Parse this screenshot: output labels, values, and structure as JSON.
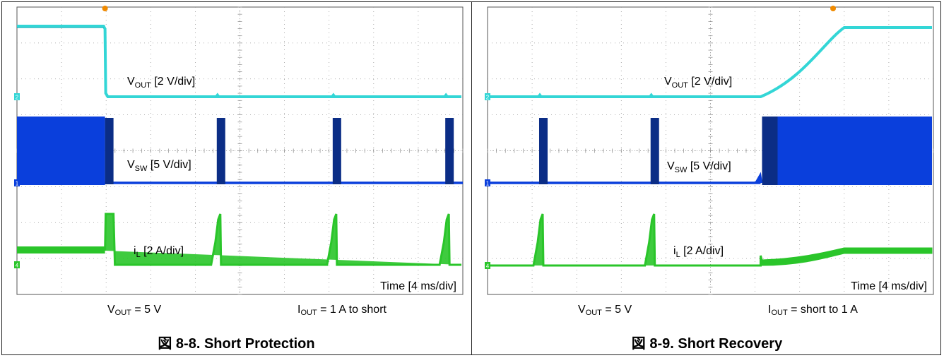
{
  "colors": {
    "vout": "#33d6d6",
    "vout_dark": "#00a9b4",
    "vsw": "#0a3fdc",
    "vsw_dark": "#0b2d86",
    "il": "#2ac52a",
    "il_dark": "#199a19",
    "grid": "#9a9a9a",
    "marker_trigger": "#f08a00"
  },
  "chart_data": [
    {
      "type": "line",
      "title": "図 8-8. Short Protection",
      "time_label": "Time [4 ms/div]",
      "x_unit": "ms",
      "x_per_div": 4,
      "divisions_x": 10,
      "divisions_y": 8,
      "channels": [
        {
          "id": "vout",
          "label_main": "V",
          "label_sub": "OUT",
          "label_rest": " [2 V/div]",
          "marker": "2",
          "marker_icon": "channel-2-marker-icon"
        },
        {
          "id": "vsw",
          "label_main": "V",
          "label_sub": "SW",
          "label_rest": " [5 V/div]",
          "marker": "1",
          "marker_icon": "channel-1-marker-icon"
        },
        {
          "id": "il",
          "label_main": "i",
          "label_sub": "L",
          "label_rest": " [2 A/div]",
          "marker": "4",
          "marker_icon": "channel-4-marker-icon"
        }
      ],
      "events": {
        "short_applied_ms": 7.9,
        "hiccup_pulses_ms": [
          7.9,
          17.8,
          28.2,
          38.3
        ],
        "vout_initial_V": 5,
        "vout_shorted_V": 0,
        "il_steady_A": 1,
        "il_peak_A": 3.2,
        "il_shorted_A": 0
      },
      "conditions": [
        {
          "main": "V",
          "sub": "OUT",
          "rest": " = 5 V"
        },
        {
          "main": "I",
          "sub": "OUT",
          "rest": " = 1 A to short"
        }
      ]
    },
    {
      "type": "line",
      "title": "図 8-9. Short Recovery",
      "time_label": "Time [4 ms/div]",
      "x_unit": "ms",
      "x_per_div": 4,
      "divisions_x": 10,
      "divisions_y": 8,
      "channels": [
        {
          "id": "vout",
          "label_main": "V",
          "label_sub": "OUT",
          "label_rest": " [2 V/div]",
          "marker": "2",
          "marker_icon": "channel-2-marker-icon"
        },
        {
          "id": "vsw",
          "label_main": "V",
          "label_sub": "SW",
          "label_rest": " [5 V/div]",
          "marker": "1",
          "marker_icon": "channel-1-marker-icon"
        },
        {
          "id": "il",
          "label_main": "i",
          "label_sub": "L",
          "label_rest": " [2 A/div]",
          "marker": "4",
          "marker_icon": "channel-4-marker-icon"
        }
      ],
      "events": {
        "hiccup_pulses_ms": [
          4.5,
          14.5
        ],
        "short_removed_ms": 24.5,
        "soft_start_end_ms": 32,
        "vout_final_V": 5,
        "il_final_A": 1
      },
      "conditions": [
        {
          "main": "V",
          "sub": "OUT",
          "rest": " = 5 V"
        },
        {
          "main": "I",
          "sub": "OUT",
          "rest": " = short to 1 A"
        }
      ]
    }
  ]
}
